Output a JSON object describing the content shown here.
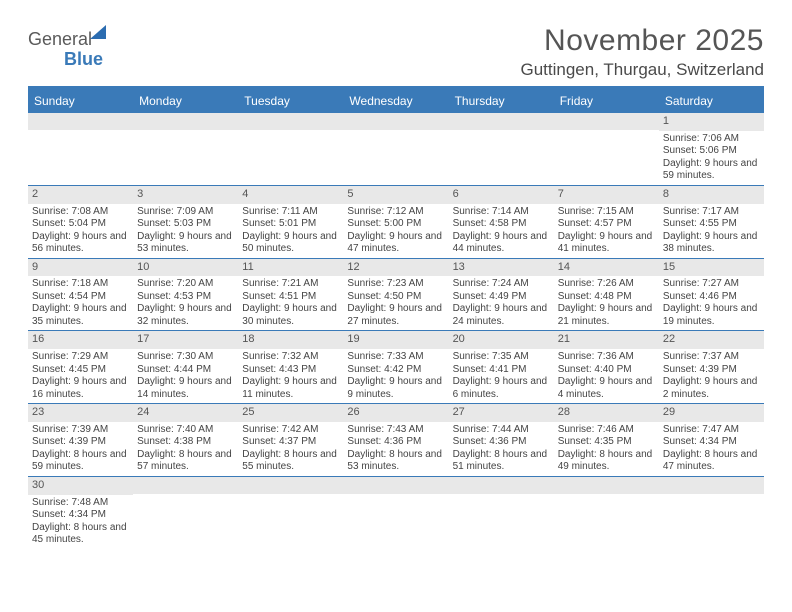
{
  "logo": {
    "word1": "General",
    "word2": "Blue"
  },
  "title": "November 2025",
  "location": "Guttingen, Thurgau, Switzerland",
  "colors": {
    "accent": "#3a7ab8",
    "bandBg": "#e8e8e8",
    "text": "#444444"
  },
  "dayNames": [
    "Sunday",
    "Monday",
    "Tuesday",
    "Wednesday",
    "Thursday",
    "Friday",
    "Saturday"
  ],
  "weeks": [
    [
      {
        "n": "",
        "sr": "",
        "ss": "",
        "dl": ""
      },
      {
        "n": "",
        "sr": "",
        "ss": "",
        "dl": ""
      },
      {
        "n": "",
        "sr": "",
        "ss": "",
        "dl": ""
      },
      {
        "n": "",
        "sr": "",
        "ss": "",
        "dl": ""
      },
      {
        "n": "",
        "sr": "",
        "ss": "",
        "dl": ""
      },
      {
        "n": "",
        "sr": "",
        "ss": "",
        "dl": ""
      },
      {
        "n": "1",
        "sr": "Sunrise: 7:06 AM",
        "ss": "Sunset: 5:06 PM",
        "dl": "Daylight: 9 hours and 59 minutes."
      }
    ],
    [
      {
        "n": "2",
        "sr": "Sunrise: 7:08 AM",
        "ss": "Sunset: 5:04 PM",
        "dl": "Daylight: 9 hours and 56 minutes."
      },
      {
        "n": "3",
        "sr": "Sunrise: 7:09 AM",
        "ss": "Sunset: 5:03 PM",
        "dl": "Daylight: 9 hours and 53 minutes."
      },
      {
        "n": "4",
        "sr": "Sunrise: 7:11 AM",
        "ss": "Sunset: 5:01 PM",
        "dl": "Daylight: 9 hours and 50 minutes."
      },
      {
        "n": "5",
        "sr": "Sunrise: 7:12 AM",
        "ss": "Sunset: 5:00 PM",
        "dl": "Daylight: 9 hours and 47 minutes."
      },
      {
        "n": "6",
        "sr": "Sunrise: 7:14 AM",
        "ss": "Sunset: 4:58 PM",
        "dl": "Daylight: 9 hours and 44 minutes."
      },
      {
        "n": "7",
        "sr": "Sunrise: 7:15 AM",
        "ss": "Sunset: 4:57 PM",
        "dl": "Daylight: 9 hours and 41 minutes."
      },
      {
        "n": "8",
        "sr": "Sunrise: 7:17 AM",
        "ss": "Sunset: 4:55 PM",
        "dl": "Daylight: 9 hours and 38 minutes."
      }
    ],
    [
      {
        "n": "9",
        "sr": "Sunrise: 7:18 AM",
        "ss": "Sunset: 4:54 PM",
        "dl": "Daylight: 9 hours and 35 minutes."
      },
      {
        "n": "10",
        "sr": "Sunrise: 7:20 AM",
        "ss": "Sunset: 4:53 PM",
        "dl": "Daylight: 9 hours and 32 minutes."
      },
      {
        "n": "11",
        "sr": "Sunrise: 7:21 AM",
        "ss": "Sunset: 4:51 PM",
        "dl": "Daylight: 9 hours and 30 minutes."
      },
      {
        "n": "12",
        "sr": "Sunrise: 7:23 AM",
        "ss": "Sunset: 4:50 PM",
        "dl": "Daylight: 9 hours and 27 minutes."
      },
      {
        "n": "13",
        "sr": "Sunrise: 7:24 AM",
        "ss": "Sunset: 4:49 PM",
        "dl": "Daylight: 9 hours and 24 minutes."
      },
      {
        "n": "14",
        "sr": "Sunrise: 7:26 AM",
        "ss": "Sunset: 4:48 PM",
        "dl": "Daylight: 9 hours and 21 minutes."
      },
      {
        "n": "15",
        "sr": "Sunrise: 7:27 AM",
        "ss": "Sunset: 4:46 PM",
        "dl": "Daylight: 9 hours and 19 minutes."
      }
    ],
    [
      {
        "n": "16",
        "sr": "Sunrise: 7:29 AM",
        "ss": "Sunset: 4:45 PM",
        "dl": "Daylight: 9 hours and 16 minutes."
      },
      {
        "n": "17",
        "sr": "Sunrise: 7:30 AM",
        "ss": "Sunset: 4:44 PM",
        "dl": "Daylight: 9 hours and 14 minutes."
      },
      {
        "n": "18",
        "sr": "Sunrise: 7:32 AM",
        "ss": "Sunset: 4:43 PM",
        "dl": "Daylight: 9 hours and 11 minutes."
      },
      {
        "n": "19",
        "sr": "Sunrise: 7:33 AM",
        "ss": "Sunset: 4:42 PM",
        "dl": "Daylight: 9 hours and 9 minutes."
      },
      {
        "n": "20",
        "sr": "Sunrise: 7:35 AM",
        "ss": "Sunset: 4:41 PM",
        "dl": "Daylight: 9 hours and 6 minutes."
      },
      {
        "n": "21",
        "sr": "Sunrise: 7:36 AM",
        "ss": "Sunset: 4:40 PM",
        "dl": "Daylight: 9 hours and 4 minutes."
      },
      {
        "n": "22",
        "sr": "Sunrise: 7:37 AM",
        "ss": "Sunset: 4:39 PM",
        "dl": "Daylight: 9 hours and 2 minutes."
      }
    ],
    [
      {
        "n": "23",
        "sr": "Sunrise: 7:39 AM",
        "ss": "Sunset: 4:39 PM",
        "dl": "Daylight: 8 hours and 59 minutes."
      },
      {
        "n": "24",
        "sr": "Sunrise: 7:40 AM",
        "ss": "Sunset: 4:38 PM",
        "dl": "Daylight: 8 hours and 57 minutes."
      },
      {
        "n": "25",
        "sr": "Sunrise: 7:42 AM",
        "ss": "Sunset: 4:37 PM",
        "dl": "Daylight: 8 hours and 55 minutes."
      },
      {
        "n": "26",
        "sr": "Sunrise: 7:43 AM",
        "ss": "Sunset: 4:36 PM",
        "dl": "Daylight: 8 hours and 53 minutes."
      },
      {
        "n": "27",
        "sr": "Sunrise: 7:44 AM",
        "ss": "Sunset: 4:36 PM",
        "dl": "Daylight: 8 hours and 51 minutes."
      },
      {
        "n": "28",
        "sr": "Sunrise: 7:46 AM",
        "ss": "Sunset: 4:35 PM",
        "dl": "Daylight: 8 hours and 49 minutes."
      },
      {
        "n": "29",
        "sr": "Sunrise: 7:47 AM",
        "ss": "Sunset: 4:34 PM",
        "dl": "Daylight: 8 hours and 47 minutes."
      }
    ],
    [
      {
        "n": "30",
        "sr": "Sunrise: 7:48 AM",
        "ss": "Sunset: 4:34 PM",
        "dl": "Daylight: 8 hours and 45 minutes."
      },
      {
        "n": "",
        "sr": "",
        "ss": "",
        "dl": ""
      },
      {
        "n": "",
        "sr": "",
        "ss": "",
        "dl": ""
      },
      {
        "n": "",
        "sr": "",
        "ss": "",
        "dl": ""
      },
      {
        "n": "",
        "sr": "",
        "ss": "",
        "dl": ""
      },
      {
        "n": "",
        "sr": "",
        "ss": "",
        "dl": ""
      },
      {
        "n": "",
        "sr": "",
        "ss": "",
        "dl": ""
      }
    ]
  ]
}
